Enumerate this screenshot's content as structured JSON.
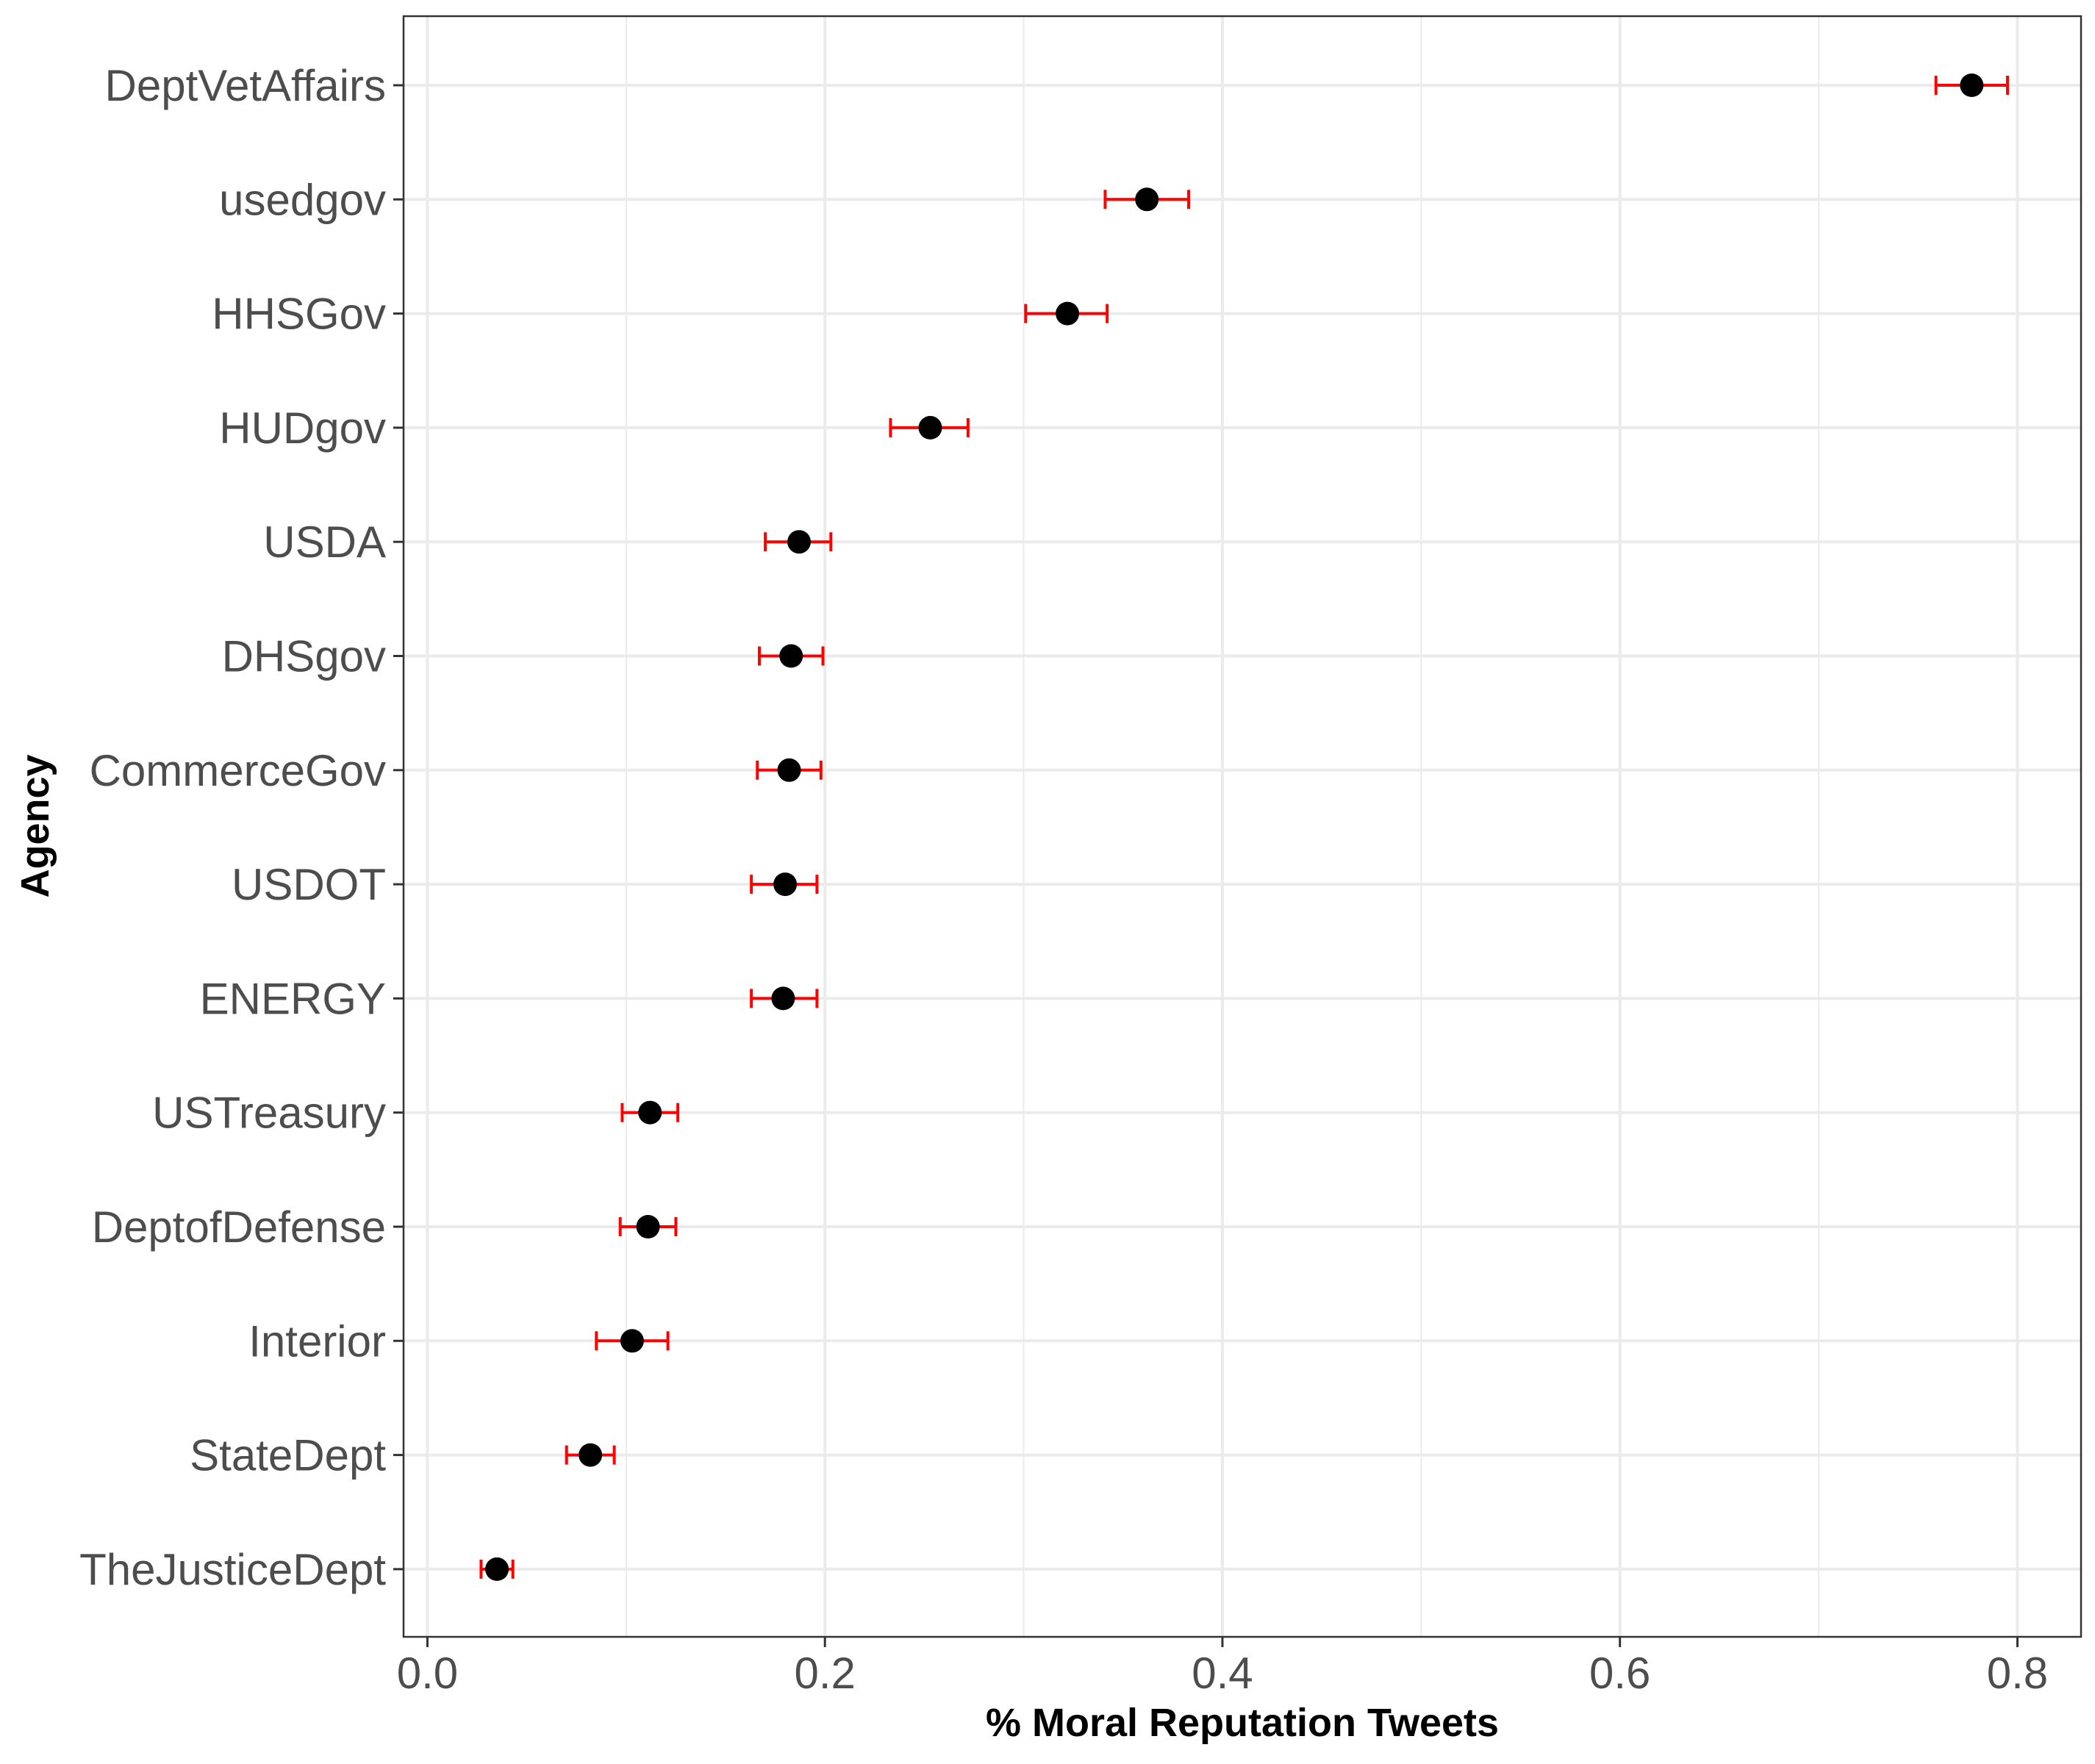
{
  "chart_data": {
    "type": "scatter",
    "xlabel": "% Moral Reputation Tweets",
    "ylabel": "Agency",
    "xlim": [
      -0.012,
      0.832
    ],
    "x_ticks": [
      0.0,
      0.2,
      0.4,
      0.6,
      0.8
    ],
    "x_tick_labels": [
      "0.0",
      "0.2",
      "0.4",
      "0.6",
      "0.8"
    ],
    "grid": true,
    "colors": {
      "point": "#000000",
      "errorbar": "#ff0000",
      "grid": "#ebebeb",
      "panel_border": "#333333"
    },
    "points": [
      {
        "agency": "DeptVetAffairs",
        "value": 0.777,
        "low": 0.759,
        "high": 0.795
      },
      {
        "agency": "usedgov",
        "value": 0.362,
        "low": 0.341,
        "high": 0.383
      },
      {
        "agency": "HHSGov",
        "value": 0.322,
        "low": 0.301,
        "high": 0.342
      },
      {
        "agency": "HUDgov",
        "value": 0.253,
        "low": 0.233,
        "high": 0.272
      },
      {
        "agency": "USDA",
        "value": 0.187,
        "low": 0.17,
        "high": 0.203
      },
      {
        "agency": "DHSgov",
        "value": 0.183,
        "low": 0.167,
        "high": 0.199
      },
      {
        "agency": "CommerceGov",
        "value": 0.182,
        "low": 0.166,
        "high": 0.198
      },
      {
        "agency": "USDOT",
        "value": 0.18,
        "low": 0.163,
        "high": 0.196
      },
      {
        "agency": "ENERGY",
        "value": 0.179,
        "low": 0.163,
        "high": 0.196
      },
      {
        "agency": "USTreasury",
        "value": 0.112,
        "low": 0.098,
        "high": 0.126
      },
      {
        "agency": "DeptofDefense",
        "value": 0.111,
        "low": 0.097,
        "high": 0.125
      },
      {
        "agency": "Interior",
        "value": 0.103,
        "low": 0.085,
        "high": 0.121
      },
      {
        "agency": "StateDept",
        "value": 0.082,
        "low": 0.07,
        "high": 0.094
      },
      {
        "agency": "TheJusticeDept",
        "value": 0.035,
        "low": 0.027,
        "high": 0.043
      }
    ]
  }
}
